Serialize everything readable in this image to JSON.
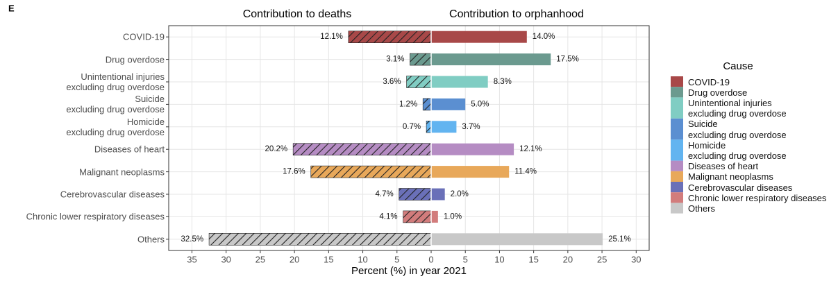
{
  "chart_data": {
    "type": "diverging_bar",
    "panel_label": "E",
    "x_label": "Percent (%) in year 2021",
    "legend_title": "Cause",
    "categories": [
      "COVID-19",
      "Drug overdose",
      "Unintentional injuries\nexcluding drug overdose",
      "Suicide\nexcluding drug overdose",
      "Homicide\nexcluding drug overdose",
      "Diseases of heart",
      "Malignant neoplasms",
      "Cerebrovascular diseases",
      "Chronic lower respiratory diseases",
      "Others"
    ],
    "colors": [
      "#a84848",
      "#6b9a8f",
      "#80cdc3",
      "#5b8fd1",
      "#62b4f0",
      "#b58cc3",
      "#e8a85a",
      "#6a70b8",
      "#d27c7c",
      "#c8c8c8"
    ],
    "series": [
      {
        "name": "Contribution to deaths",
        "side": "left",
        "hatch": true,
        "values": [
          12.1,
          3.1,
          3.6,
          1.2,
          0.7,
          20.2,
          17.6,
          4.7,
          4.1,
          32.5
        ],
        "value_labels": [
          "12.1%",
          "3.1%",
          "3.6%",
          "1.2%",
          "0.7%",
          "20.2%",
          "17.6%",
          "4.7%",
          "4.1%",
          "32.5%"
        ]
      },
      {
        "name": "Contribution to orphanhood",
        "side": "right",
        "hatch": false,
        "values": [
          14.0,
          17.5,
          8.3,
          5.0,
          3.7,
          12.1,
          11.4,
          2.0,
          1.0,
          25.1
        ],
        "value_labels": [
          "14.0%",
          "17.5%",
          "8.3%",
          "5.0%",
          "3.7%",
          "12.1%",
          "11.4%",
          "2.0%",
          "1.0%",
          "25.1%"
        ]
      }
    ],
    "xlim": [
      -38.4,
      31.9
    ],
    "xticks": [
      {
        "value": -35,
        "label": "35"
      },
      {
        "value": -30,
        "label": "30"
      },
      {
        "value": -25,
        "label": "25"
      },
      {
        "value": -20,
        "label": "20"
      },
      {
        "value": -15,
        "label": "15"
      },
      {
        "value": -10,
        "label": "10"
      },
      {
        "value": -5,
        "label": "5"
      },
      0,
      5,
      10,
      15,
      20,
      25,
      30
    ],
    "grid": true
  }
}
